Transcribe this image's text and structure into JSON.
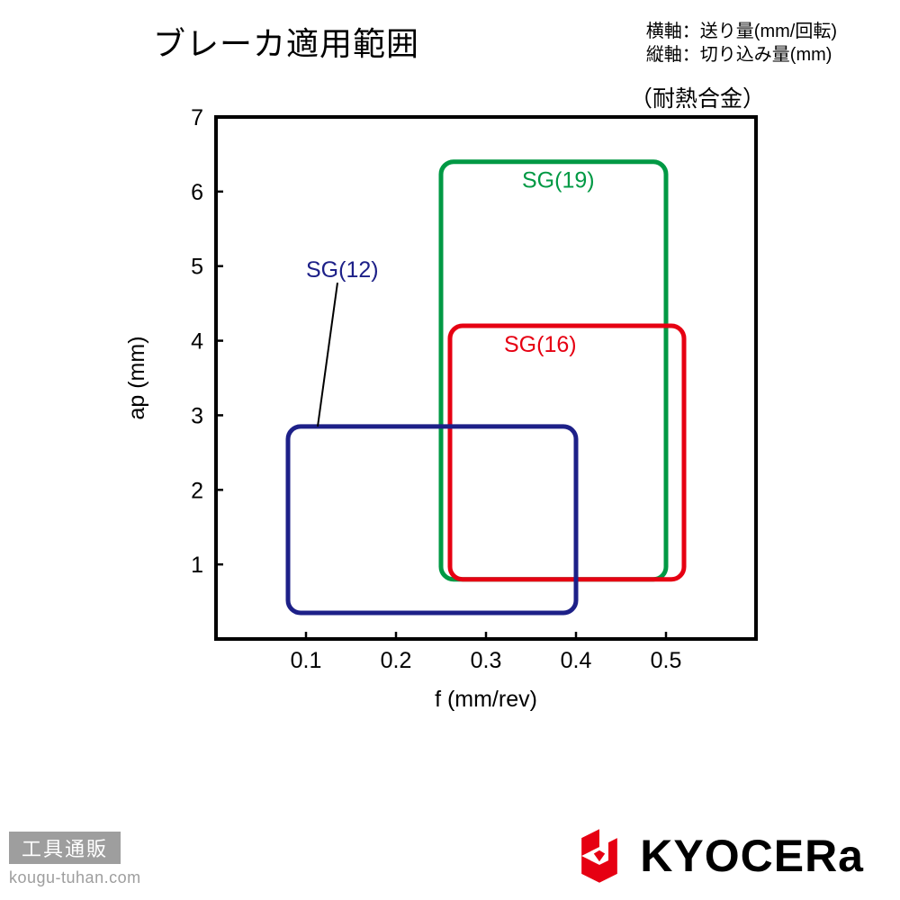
{
  "title": "ブレーカ適用範囲",
  "axis_legend": {
    "x": "横軸：送り量(mm/回転)",
    "y": "縦軸：切り込み量(mm)"
  },
  "subtitle": "（耐熱合金）",
  "chart": {
    "type": "range-box",
    "xlabel": "f (mm/rev)",
    "ylabel": "ap (mm)",
    "xlim": [
      0,
      0.6
    ],
    "ylim": [
      0,
      7
    ],
    "xticks": [
      0.1,
      0.2,
      0.3,
      0.4,
      0.5
    ],
    "yticks": [
      1,
      2,
      3,
      4,
      5,
      6,
      7
    ],
    "tick_length": 8,
    "tick_fontsize": 25,
    "label_fontsize": 25,
    "axis_color": "#000000",
    "axis_width": 4,
    "background_color": "#ffffff",
    "box_corner_radius": 14,
    "box_stroke_width": 5,
    "series": [
      {
        "name": "SG(19)",
        "color": "#009944",
        "x0": 0.25,
        "x1": 0.5,
        "y0": 0.8,
        "y1": 6.4,
        "label_xy": [
          0.34,
          6.05
        ]
      },
      {
        "name": "SG(16)",
        "color": "#e60012",
        "x0": 0.26,
        "x1": 0.52,
        "y0": 0.8,
        "y1": 4.2,
        "label_xy": [
          0.32,
          3.85
        ]
      },
      {
        "name": "SG(12)",
        "color": "#1d2088",
        "x0": 0.08,
        "x1": 0.4,
        "y0": 0.35,
        "y1": 2.85,
        "label_xy": [
          0.1,
          4.85
        ],
        "leader_to": [
          0.113,
          2.85
        ]
      }
    ],
    "series_label_fontsize": 25
  },
  "footer": {
    "badge": "工具通販",
    "url": "kougu-tuhan.com",
    "brand": "KYOCERa",
    "brand_logo_color": "#e60012",
    "badge_bg": "#9e9e9e",
    "url_color": "#9e9e9e"
  }
}
